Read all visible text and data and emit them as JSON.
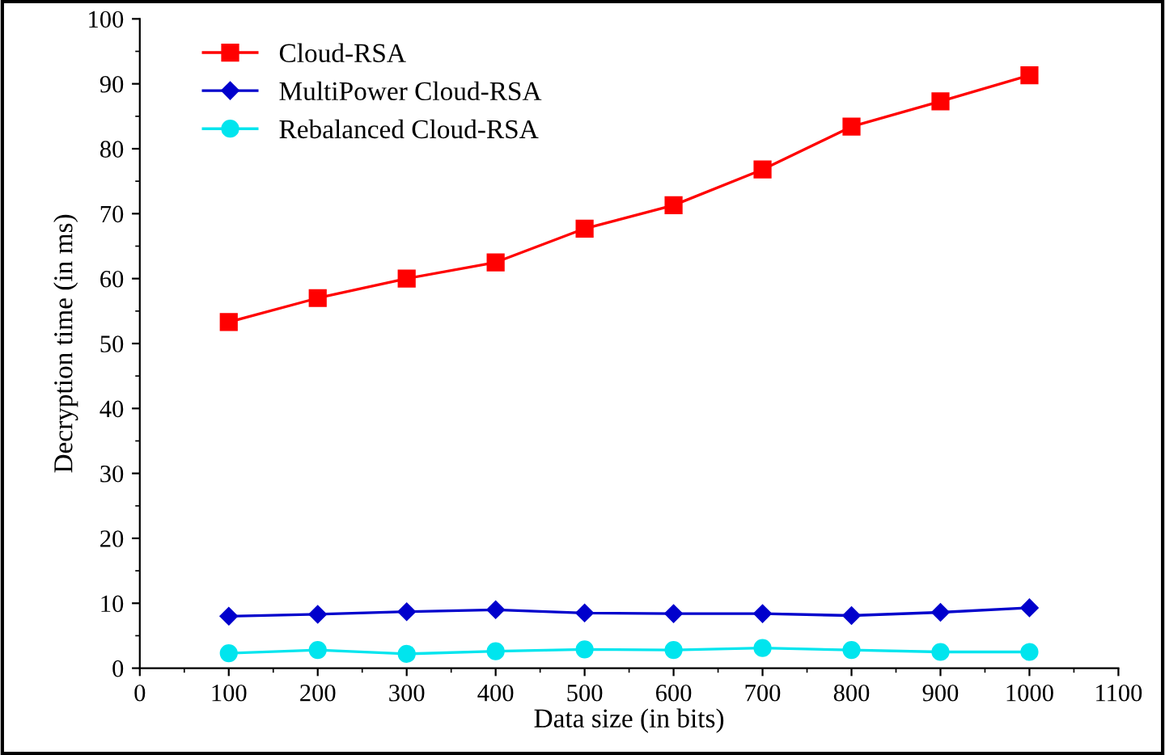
{
  "chart_data": {
    "type": "line",
    "xlabel": "Data size (in bits)",
    "ylabel": "Decryption time (in ms)",
    "x": [
      100,
      200,
      300,
      400,
      500,
      600,
      700,
      800,
      900,
      1000
    ],
    "series": [
      {
        "name": "Cloud-RSA",
        "color": "#ff0000",
        "marker": "square",
        "values": [
          53.3,
          57,
          60,
          62.5,
          67.7,
          71.3,
          76.8,
          83.4,
          87.3,
          91.3
        ]
      },
      {
        "name": "MultiPower Cloud-RSA",
        "color": "#0000cc",
        "marker": "diamond",
        "values": [
          8,
          8.3,
          8.7,
          9,
          8.5,
          8.4,
          8.4,
          8.1,
          8.6,
          9.3
        ]
      },
      {
        "name": "Rebalanced Cloud-RSA",
        "color": "#00e5ee",
        "marker": "circle",
        "values": [
          2.3,
          2.8,
          2.2,
          2.6,
          2.9,
          2.8,
          3.1,
          2.8,
          2.5,
          2.5
        ]
      }
    ],
    "xlim": [
      0,
      1100
    ],
    "xticks": [
      0,
      100,
      200,
      300,
      400,
      500,
      600,
      700,
      800,
      900,
      1000,
      1100
    ],
    "ylim": [
      0,
      100
    ],
    "yticks": [
      0,
      10,
      20,
      30,
      40,
      50,
      60,
      70,
      80,
      90,
      100
    ],
    "grid": false,
    "legend": "top left"
  }
}
